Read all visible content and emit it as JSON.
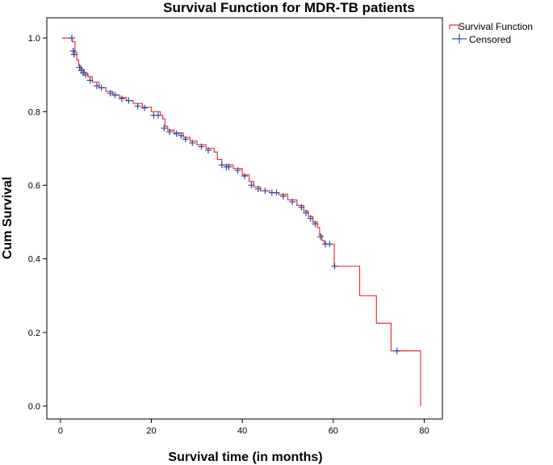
{
  "chart_data": {
    "type": "line",
    "title": "Survival Function for MDR-TB patients",
    "xlabel": "Survival time (in months)",
    "ylabel": "Cum Survival",
    "xlim": [
      -3,
      84
    ],
    "ylim": [
      -0.035,
      1.055
    ],
    "xticks": [
      0,
      20,
      40,
      60,
      80
    ],
    "xtick_labels": [
      "0",
      "20",
      "40",
      "60",
      "80"
    ],
    "yticks": [
      0.0,
      0.2,
      0.4,
      0.6,
      0.8,
      1.0
    ],
    "ytick_labels": [
      "0.0",
      "0.2",
      "0.4",
      "0.6",
      "0.8",
      "1.0"
    ],
    "grid": false,
    "legend": {
      "position": "top-right",
      "entries": [
        "Survival Function",
        "Censored"
      ]
    },
    "colors": {
      "survival": "#e8323c",
      "censored": "#2e4da0"
    },
    "series": [
      {
        "name": "Survival Function",
        "kind": "step",
        "x": [
          0.3,
          2.6,
          3.2,
          3.6,
          4.0,
          4.5,
          5.2,
          6.0,
          7.0,
          8.5,
          10.0,
          11.5,
          13.0,
          14.5,
          16.0,
          18.0,
          20.0,
          22.0,
          22.5,
          23.0,
          23.6,
          25.0,
          27.0,
          28.5,
          30.0,
          32.0,
          33.8,
          34.5,
          35.5,
          38.0,
          40.0,
          41.5,
          42.5,
          44.0,
          46.0,
          48.0,
          50.0,
          52.0,
          53.5,
          54.5,
          55.5,
          56.5,
          57.0,
          57.5,
          58.0,
          60.2,
          65.8,
          69.5,
          72.7,
          79.2
        ],
        "y": [
          1.0,
          0.99,
          0.96,
          0.94,
          0.925,
          0.915,
          0.905,
          0.895,
          0.88,
          0.865,
          0.855,
          0.845,
          0.838,
          0.83,
          0.822,
          0.812,
          0.8,
          0.79,
          0.78,
          0.76,
          0.75,
          0.742,
          0.73,
          0.72,
          0.71,
          0.7,
          0.69,
          0.67,
          0.655,
          0.645,
          0.628,
          0.61,
          0.595,
          0.585,
          0.58,
          0.575,
          0.56,
          0.545,
          0.53,
          0.515,
          0.5,
          0.485,
          0.465,
          0.45,
          0.44,
          0.38,
          0.3,
          0.225,
          0.15,
          0.0
        ]
      },
      {
        "name": "Censored",
        "kind": "markers",
        "x": [
          2.5,
          2.8,
          3.0,
          4.2,
          4.6,
          5.0,
          5.5,
          6.5,
          8.0,
          9.0,
          11.0,
          12.0,
          13.5,
          15.0,
          17.0,
          18.5,
          20.5,
          21.5,
          22.8,
          24.0,
          25.5,
          26.5,
          27.5,
          29.0,
          31.0,
          32.5,
          35.5,
          36.5,
          37.0,
          39.0,
          40.5,
          42.0,
          43.5,
          45.0,
          46.5,
          47.5,
          49.0,
          51.0,
          53.0,
          54.0,
          55.0,
          56.0,
          57.2,
          58.3,
          59.2,
          60.3,
          74.0
        ],
        "y": [
          1.0,
          0.965,
          0.955,
          0.92,
          0.912,
          0.905,
          0.9,
          0.885,
          0.87,
          0.865,
          0.85,
          0.845,
          0.835,
          0.83,
          0.815,
          0.81,
          0.79,
          0.79,
          0.755,
          0.745,
          0.74,
          0.735,
          0.725,
          0.715,
          0.705,
          0.695,
          0.655,
          0.65,
          0.65,
          0.64,
          0.625,
          0.6,
          0.59,
          0.585,
          0.58,
          0.58,
          0.57,
          0.555,
          0.54,
          0.525,
          0.51,
          0.495,
          0.46,
          0.44,
          0.44,
          0.38,
          0.15
        ]
      }
    ]
  }
}
